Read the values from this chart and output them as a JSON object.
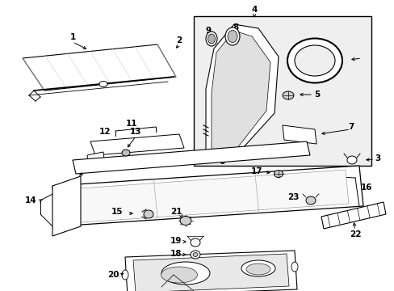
{
  "bg_color": "#ffffff",
  "lc": "#000000",
  "fig_w": 4.89,
  "fig_h": 3.6,
  "dpi": 100
}
